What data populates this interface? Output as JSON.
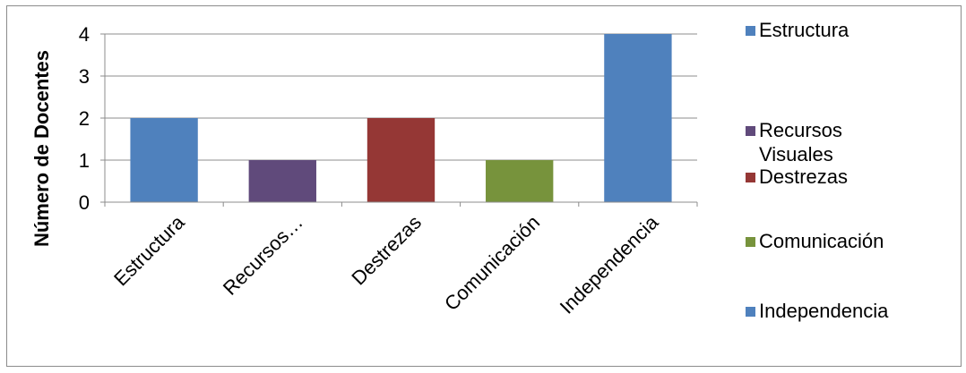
{
  "chart_data": {
    "type": "bar",
    "title": "",
    "xlabel": "",
    "ylabel": "Número de Docentes",
    "categories": [
      "Estructura",
      "Recursos…",
      "Destrezas",
      "Comunicación",
      "Independencia"
    ],
    "values": [
      2,
      1,
      2,
      1,
      4
    ],
    "colors": [
      "#4F81BD",
      "#604A7B",
      "#953735",
      "#77933C",
      "#4F81BD"
    ],
    "ylim": [
      0,
      4
    ],
    "yticks": [
      "0",
      "1",
      "2",
      "3",
      "4"
    ],
    "grid": true,
    "legend_position": "right",
    "legend": [
      {
        "label": "Estructura",
        "color": "#4F81BD"
      },
      {
        "label": "Recursos Visuales",
        "color": "#604A7B"
      },
      {
        "label": "Destrezas",
        "color": "#953735"
      },
      {
        "label": "Comunicación",
        "color": "#77933C"
      },
      {
        "label": "Independencia",
        "color": "#4F81BD"
      }
    ]
  }
}
